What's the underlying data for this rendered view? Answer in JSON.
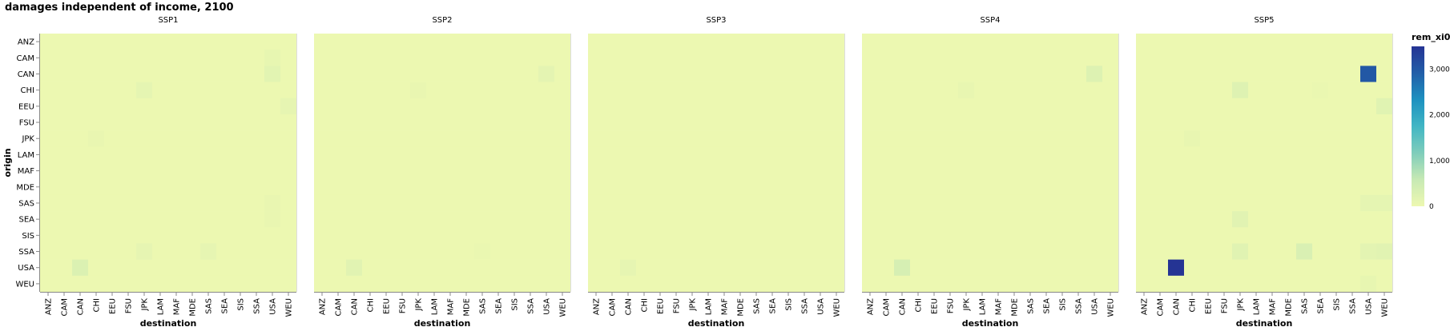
{
  "title": "damages independent of income, 2100",
  "chart_data": {
    "type": "heatmap",
    "title": "damages independent of income, 2100",
    "xlabel": "destination",
    "ylabel": "origin",
    "facets": [
      "SSP1",
      "SSP2",
      "SSP3",
      "SSP4",
      "SSP5"
    ],
    "categories": [
      "ANZ",
      "CAM",
      "CAN",
      "CHI",
      "EEU",
      "FSU",
      "JPK",
      "LAM",
      "MAF",
      "MDE",
      "SAS",
      "SEA",
      "SIS",
      "SSA",
      "USA",
      "WEU"
    ],
    "color_field": "rem_xi0",
    "color_domain": [
      0,
      3500
    ],
    "color_ticks": [
      "0",
      "1,000",
      "2,000",
      "3,000"
    ],
    "color_scheme": [
      "#edf8b1",
      "#c7e9b4",
      "#7fcdbb",
      "#41b6c4",
      "#1d91c0",
      "#225ea8",
      "#253494"
    ],
    "default_value": 10,
    "cells": [
      {
        "facet": "SSP1",
        "origin": "CAM",
        "destination": "USA",
        "value": 90
      },
      {
        "facet": "SSP1",
        "origin": "CAN",
        "destination": "USA",
        "value": 170
      },
      {
        "facet": "SSP1",
        "origin": "CHI",
        "destination": "JPK",
        "value": 120
      },
      {
        "facet": "SSP1",
        "origin": "EEU",
        "destination": "WEU",
        "value": 110
      },
      {
        "facet": "SSP1",
        "origin": "JPK",
        "destination": "CHI",
        "value": 60
      },
      {
        "facet": "SSP1",
        "origin": "SSA",
        "destination": "JPK",
        "value": 100
      },
      {
        "facet": "SSP1",
        "origin": "SSA",
        "destination": "SAS",
        "value": 110
      },
      {
        "facet": "SSP1",
        "origin": "USA",
        "destination": "CAN",
        "value": 280
      },
      {
        "facet": "SSP1",
        "origin": "SAS",
        "destination": "USA",
        "value": 60
      },
      {
        "facet": "SSP1",
        "origin": "SEA",
        "destination": "USA",
        "value": 60
      },
      {
        "facet": "SSP2",
        "origin": "CAN",
        "destination": "USA",
        "value": 140
      },
      {
        "facet": "SSP2",
        "origin": "CHI",
        "destination": "JPK",
        "value": 60
      },
      {
        "facet": "SSP2",
        "origin": "USA",
        "destination": "CAN",
        "value": 180
      },
      {
        "facet": "SSP2",
        "origin": "SSA",
        "destination": "SAS",
        "value": 40
      },
      {
        "facet": "SSP3",
        "origin": "USA",
        "destination": "CAN",
        "value": 110
      },
      {
        "facet": "SSP4",
        "origin": "CAN",
        "destination": "USA",
        "value": 240
      },
      {
        "facet": "SSP4",
        "origin": "CHI",
        "destination": "JPK",
        "value": 70
      },
      {
        "facet": "SSP4",
        "origin": "USA",
        "destination": "CAN",
        "value": 360
      },
      {
        "facet": "SSP5",
        "origin": "CAN",
        "destination": "USA",
        "value": 3000
      },
      {
        "facet": "SSP5",
        "origin": "CHI",
        "destination": "JPK",
        "value": 230
      },
      {
        "facet": "SSP5",
        "origin": "EEU",
        "destination": "WEU",
        "value": 200
      },
      {
        "facet": "SSP5",
        "origin": "JPK",
        "destination": "CHI",
        "value": 80
      },
      {
        "facet": "SSP5",
        "origin": "SAS",
        "destination": "USA",
        "value": 120
      },
      {
        "facet": "SSP5",
        "origin": "SAS",
        "destination": "WEU",
        "value": 120
      },
      {
        "facet": "SSP5",
        "origin": "SEA",
        "destination": "JPK",
        "value": 180
      },
      {
        "facet": "SSP5",
        "origin": "SSA",
        "destination": "JPK",
        "value": 200
      },
      {
        "facet": "SSP5",
        "origin": "SSA",
        "destination": "SAS",
        "value": 300
      },
      {
        "facet": "SSP5",
        "origin": "SSA",
        "destination": "USA",
        "value": 150
      },
      {
        "facet": "SSP5",
        "origin": "SSA",
        "destination": "WEU",
        "value": 180
      },
      {
        "facet": "SSP5",
        "origin": "USA",
        "destination": "CAN",
        "value": 3500
      },
      {
        "facet": "SSP5",
        "origin": "WEU",
        "destination": "USA",
        "value": 90
      },
      {
        "facet": "SSP5",
        "origin": "CHI",
        "destination": "SEA",
        "value": 50
      }
    ]
  }
}
